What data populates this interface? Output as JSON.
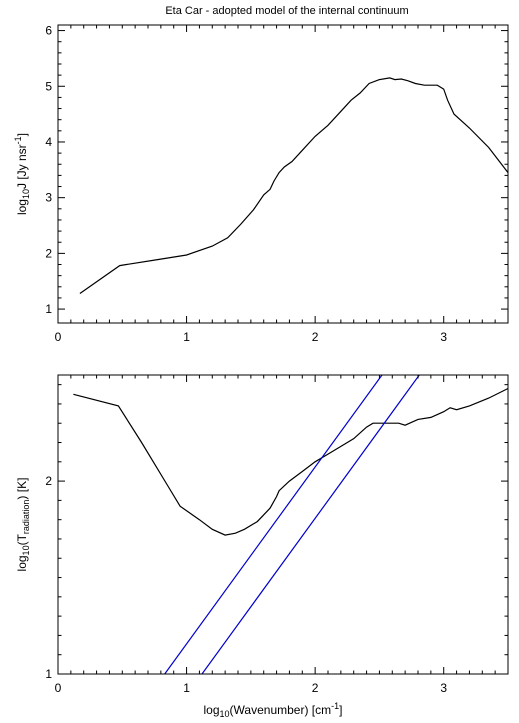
{
  "figure": {
    "title": "Eta Car - adopted model of the internal continuum"
  },
  "chart_data": [
    {
      "type": "line",
      "title": "Eta Car - adopted model of the internal continuum",
      "xlabel": "",
      "ylabel": {
        "base": "log",
        "sub": "10",
        "main": "J [Jy nsr",
        "sup": "-1",
        "tail": "]"
      },
      "xlim": [
        0,
        3.5
      ],
      "ylim": [
        0.75,
        6.1
      ],
      "x_ticks": [
        0,
        1,
        2,
        3
      ],
      "y_ticks": [
        1,
        2,
        3,
        4,
        5,
        6
      ],
      "grid": false,
      "series": [
        {
          "color": "#000000",
          "x": [
            0.17,
            0.48,
            0.75,
            1.0,
            1.2,
            1.32,
            1.42,
            1.52,
            1.6,
            1.65,
            1.68,
            1.72,
            1.76,
            1.82,
            1.9,
            2.0,
            2.1,
            2.2,
            2.28,
            2.35,
            2.42,
            2.5,
            2.58,
            2.62,
            2.67,
            2.72,
            2.78,
            2.85,
            2.95,
            3.0,
            3.03,
            3.08,
            3.2,
            3.35,
            3.5
          ],
          "y": [
            1.28,
            1.78,
            1.88,
            1.97,
            2.13,
            2.28,
            2.52,
            2.78,
            3.05,
            3.15,
            3.3,
            3.45,
            3.55,
            3.65,
            3.85,
            4.1,
            4.3,
            4.55,
            4.75,
            4.88,
            5.05,
            5.12,
            5.15,
            5.12,
            5.13,
            5.1,
            5.05,
            5.02,
            5.02,
            4.95,
            4.75,
            4.5,
            4.25,
            3.9,
            3.45
          ]
        }
      ]
    },
    {
      "type": "line",
      "title": "",
      "xlabel": {
        "base": "log",
        "sub": "10",
        "main": "(Wavenumber) [cm",
        "sup": "-1",
        "tail": "]"
      },
      "ylabel": {
        "base": "log",
        "sub": "10",
        "main": "(T",
        "sub2": "radiation",
        "tail": ") [K]"
      },
      "xlim": [
        0,
        3.5
      ],
      "ylim": [
        1,
        2.55
      ],
      "x_ticks": [
        0,
        1,
        2,
        3
      ],
      "y_ticks": [
        1,
        2
      ],
      "grid": false,
      "series": [
        {
          "color": "#000000",
          "x": [
            0.12,
            0.47,
            0.65,
            0.85,
            0.95,
            1.1,
            1.2,
            1.3,
            1.38,
            1.45,
            1.55,
            1.65,
            1.7,
            1.72,
            1.8,
            1.9,
            2.0,
            2.1,
            2.2,
            2.3,
            2.4,
            2.45,
            2.55,
            2.65,
            2.7,
            2.8,
            2.9,
            3.0,
            3.05,
            3.1,
            3.2,
            3.35,
            3.5
          ],
          "y": [
            2.45,
            2.39,
            2.2,
            1.98,
            1.87,
            1.8,
            1.75,
            1.72,
            1.73,
            1.75,
            1.79,
            1.86,
            1.92,
            1.95,
            2.0,
            2.05,
            2.1,
            2.14,
            2.18,
            2.22,
            2.28,
            2.3,
            2.3,
            2.3,
            2.29,
            2.32,
            2.33,
            2.36,
            2.38,
            2.37,
            2.39,
            2.43,
            2.48
          ]
        },
        {
          "color": "#0000cc",
          "x": [
            0.83,
            2.52
          ],
          "y": [
            1.0,
            2.55
          ]
        },
        {
          "color": "#0000cc",
          "x": [
            1.12,
            2.81
          ],
          "y": [
            1.0,
            2.55
          ]
        }
      ]
    }
  ]
}
